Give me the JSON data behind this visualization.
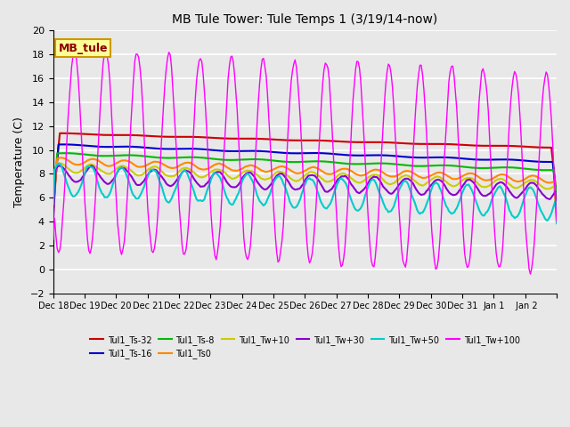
{
  "title": "MB Tule Tower: Tule Temps 1 (3/19/14-now)",
  "ylabel": "Temperature (C)",
  "ylim": [
    -2,
    20
  ],
  "yticks": [
    -2,
    0,
    2,
    4,
    6,
    8,
    10,
    12,
    14,
    16,
    18,
    20
  ],
  "bg_color": "#e8e8e8",
  "grid_color": "#ffffff",
  "series": [
    {
      "label": "Tul1_Ts-32",
      "color": "#cc0000",
      "lw": 1.5
    },
    {
      "label": "Tul1_Ts-16",
      "color": "#0000cc",
      "lw": 1.5
    },
    {
      "label": "Tul1_Ts-8",
      "color": "#00bb00",
      "lw": 1.5
    },
    {
      "label": "Tul1_Ts0",
      "color": "#ff8800",
      "lw": 1.5
    },
    {
      "label": "Tul1_Tw+10",
      "color": "#cccc00",
      "lw": 1.5
    },
    {
      "label": "Tul1_Tw+30",
      "color": "#8800cc",
      "lw": 1.5
    },
    {
      "label": "Tul1_Tw+50",
      "color": "#00cccc",
      "lw": 1.5
    },
    {
      "label": "Tul1_Tw+100",
      "color": "#ff00ff",
      "lw": 1.0
    }
  ],
  "xtick_pos": [
    0,
    1,
    2,
    3,
    4,
    5,
    6,
    7,
    8,
    9,
    10,
    11,
    12,
    13,
    14,
    15,
    16
  ],
  "xtick_labels": [
    "Dec 18",
    "Dec 19",
    "Dec 20",
    "Dec 21",
    "Dec 22",
    "Dec 23",
    "Dec 24",
    "Dec 25",
    "Dec 26",
    "Dec 27",
    "Dec 28",
    "Dec 29",
    "Dec 30",
    "Dec 31",
    "Jan 1",
    " Jan 2",
    ""
  ],
  "legend_box_label": "MB_tule",
  "legend_box_facecolor": "#ffff99",
  "legend_box_edgecolor": "#cc9900"
}
